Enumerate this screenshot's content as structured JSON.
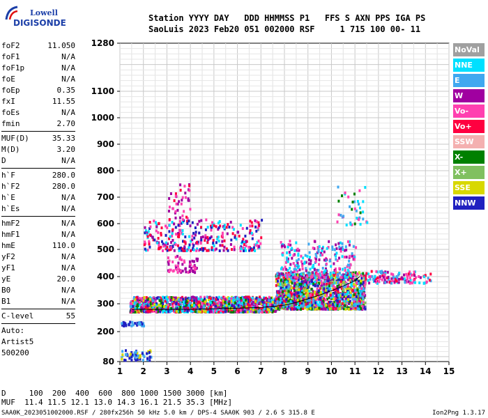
{
  "logo": {
    "line1": "Lowell",
    "line2": "DIGISONDE"
  },
  "header": {
    "row1": "Station YYYY DAY   DDD HHMMSS P1   FFS S AXN PPS IGA PS",
    "row2": "SaoLuis 2023 Feb20 051 002000 RSF     1 715 100 00- 11"
  },
  "params": [
    {
      "label": "foF2",
      "value": "11.050"
    },
    {
      "label": "foF1",
      "value": "N/A"
    },
    {
      "label": "foF1p",
      "value": "N/A"
    },
    {
      "label": "foE",
      "value": "N/A"
    },
    {
      "label": "foEp",
      "value": "0.35"
    },
    {
      "label": "fxI",
      "value": "11.55"
    },
    {
      "label": "foEs",
      "value": "N/A"
    },
    {
      "label": "fmin",
      "value": "2.70"
    },
    {
      "sep": true
    },
    {
      "label": "MUF(D)",
      "value": "35.33"
    },
    {
      "label": "M(D)",
      "value": "3.20"
    },
    {
      "label": "D",
      "value": "N/A"
    },
    {
      "sep": true
    },
    {
      "label": "h`F",
      "value": "280.0"
    },
    {
      "label": "h`F2",
      "value": "280.0"
    },
    {
      "label": "h`E",
      "value": "N/A"
    },
    {
      "label": "h`Es",
      "value": "N/A"
    },
    {
      "sep": true
    },
    {
      "label": "hmF2",
      "value": "N/A"
    },
    {
      "label": "hmF1",
      "value": "N/A"
    },
    {
      "label": "hmE",
      "value": "110.0"
    },
    {
      "label": "yF2",
      "value": "N/A"
    },
    {
      "label": "yF1",
      "value": "N/A"
    },
    {
      "label": "yE",
      "value": "20.0"
    },
    {
      "label": "B0",
      "value": "N/A"
    },
    {
      "label": "B1",
      "value": "N/A"
    },
    {
      "sep": true
    },
    {
      "label": "C-level",
      "value": "55"
    },
    {
      "sep": true
    },
    {
      "free": "Auto:"
    },
    {
      "free": "Artist5"
    },
    {
      "free": "500200"
    }
  ],
  "legend": [
    {
      "label": "NoVal",
      "color": "#a0a0a0"
    },
    {
      "label": "NNE",
      "color": "#00e0ff"
    },
    {
      "label": "E",
      "color": "#40a8f0"
    },
    {
      "label": "W",
      "color": "#a000a0"
    },
    {
      "label": "Vo-",
      "color": "#ff40b0"
    },
    {
      "label": "Vo+",
      "color": "#ff0040"
    },
    {
      "label": "SSW",
      "color": "#f4b0b0"
    },
    {
      "label": "X-",
      "color": "#008000"
    },
    {
      "label": "X+",
      "color": "#80c060"
    },
    {
      "label": "SSE",
      "color": "#d8d800"
    },
    {
      "label": "NNW",
      "color": "#2020c0"
    }
  ],
  "chart_data": {
    "type": "scatter",
    "x_range": [
      1,
      15
    ],
    "x_ticks": [
      "1",
      "2",
      "3",
      "4",
      "5",
      "6",
      "7",
      "8",
      "9",
      "10",
      "11",
      "12",
      "13",
      "14",
      "15"
    ],
    "y_ticks": [
      "80",
      "200",
      "300",
      "400",
      "500",
      "600",
      "700",
      "800",
      "900",
      "1000",
      "1100",
      "1280"
    ],
    "grid": true,
    "trace": {
      "color": "#000000",
      "x": [
        1.5,
        2.2,
        3,
        4,
        5,
        6,
        7,
        7.6,
        8,
        8.5,
        9,
        9.5,
        10,
        10.5,
        11,
        11.2
      ],
      "y": [
        280,
        280,
        280,
        280,
        282,
        284,
        287,
        291,
        295,
        305,
        318,
        332,
        348,
        365,
        385,
        400
      ]
    },
    "echo_regions": [
      {
        "x": [
          1.4,
          7.6
        ],
        "y": [
          275,
          330
        ],
        "count": 1500,
        "colors": [
          "#a000a0",
          "#ff0040",
          "#ff40b0",
          "#008000",
          "#d8d800",
          "#2020c0",
          "#40a8f0",
          "#00e0ff"
        ]
      },
      {
        "x": [
          7.6,
          11.4
        ],
        "y": [
          285,
          420
        ],
        "count": 1500,
        "colors": [
          "#00e0ff",
          "#40a8f0",
          "#a000a0",
          "#ff40b0",
          "#ff0040",
          "#008000",
          "#d8d800",
          "#80c060",
          "#2020c0"
        ]
      },
      {
        "x": [
          7.8,
          11.0
        ],
        "y": [
          400,
          540
        ],
        "count": 260,
        "colors": [
          "#00e0ff",
          "#40a8f0",
          "#a000a0",
          "#ff40b0"
        ]
      },
      {
        "x": [
          11.4,
          14.2
        ],
        "y": [
          380,
          425
        ],
        "count": 130,
        "colors": [
          "#ff0040",
          "#ff40b0",
          "#00e0ff",
          "#40a8f0",
          "#a000a0"
        ]
      },
      {
        "x": [
          2.0,
          7.0
        ],
        "y": [
          500,
          620
        ],
        "count": 320,
        "colors": [
          "#a000a0",
          "#ff0040",
          "#ff40b0",
          "#00e0ff",
          "#2020c0"
        ]
      },
      {
        "x": [
          3.0,
          4.0
        ],
        "y": [
          620,
          760
        ],
        "count": 40,
        "colors": [
          "#a000a0",
          "#ff40b0",
          "#ff0040"
        ]
      },
      {
        "x": [
          3.0,
          4.3
        ],
        "y": [
          420,
          480
        ],
        "count": 60,
        "colors": [
          "#a000a0",
          "#ff40b0"
        ]
      },
      {
        "x": [
          10.2,
          11.5
        ],
        "y": [
          600,
          750
        ],
        "count": 40,
        "colors": [
          "#00e0ff",
          "#40a8f0",
          "#ff40b0",
          "#008000"
        ]
      },
      {
        "x": [
          1.0,
          2.0
        ],
        "y": [
          225,
          240
        ],
        "count": 40,
        "colors": [
          "#40a8f0",
          "#2020c0"
        ]
      },
      {
        "x": [
          1.0,
          2.3
        ],
        "y": [
          90,
          130
        ],
        "count": 60,
        "colors": [
          "#2020c0",
          "#d8d800",
          "#40a8f0"
        ]
      }
    ]
  },
  "footer": {
    "line1": "D     100  200  400  600  800 1000 1500 3000 [km]",
    "line2": "MUF  11.4 11.5 12.1 13.0 14.3 16.1 21.5 35.3 [MHz]",
    "file": "SAA0K_2023051002000.RSF / 280fx256h 50 kHz 5.0 km / DPS-4 SAA0K 903 / 2.6 S 315.8 E",
    "version": "Ion2Png 1.3.17"
  }
}
